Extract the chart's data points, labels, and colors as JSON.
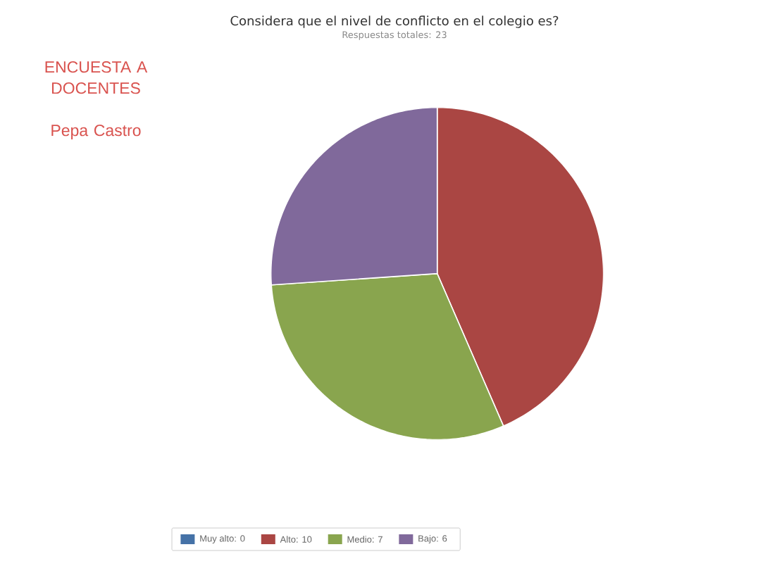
{
  "chart_data": {
    "type": "pie",
    "title": "Considera que el nivel de conflicto en el colegio es?",
    "subtitle": "Respuestas totales: 23",
    "categories": [
      "Muy alto: 0",
      "Alto: 10",
      "Medio: 7",
      "Bajo: 6"
    ],
    "values": [
      0,
      10,
      7,
      6
    ],
    "colors": [
      "#4572a7",
      "#aa4643",
      "#89a54e",
      "#80699b"
    ],
    "legend": "bottom",
    "annotations": [
      "ENCUESTA A DOCENTES",
      "Pepa Castro"
    ]
  }
}
